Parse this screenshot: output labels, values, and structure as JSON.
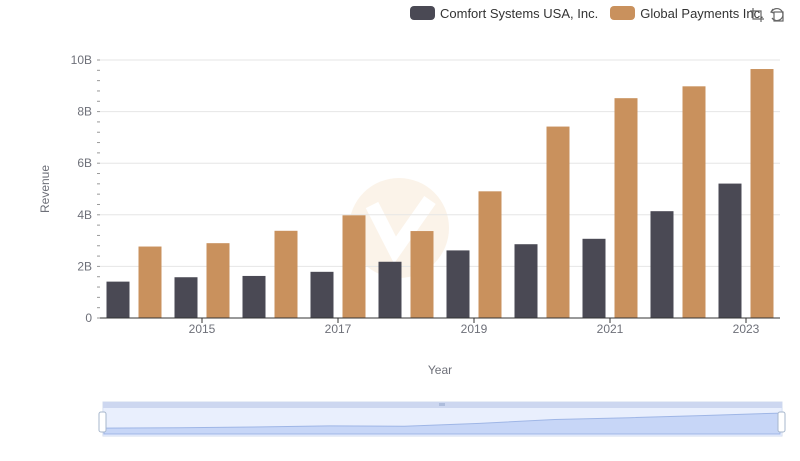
{
  "legend": {
    "items": [
      {
        "label": "Comfort Systems USA, Inc.",
        "color": "#4a4954"
      },
      {
        "label": "Global Payments Inc.",
        "color": "#c9915d"
      }
    ]
  },
  "toolbar": {
    "icons": [
      "zoom-icon",
      "restore-icon"
    ]
  },
  "chart_data": {
    "type": "bar",
    "x": [
      2014,
      2015,
      2016,
      2017,
      2018,
      2019,
      2020,
      2021,
      2022,
      2023
    ],
    "xlabel": "Year",
    "ylabel": "Revenue",
    "ylim": [
      0,
      10000000000
    ],
    "yticks": [
      {
        "value": 0,
        "label": "0"
      },
      {
        "value": 2000000000,
        "label": "2B"
      },
      {
        "value": 4000000000,
        "label": "4B"
      },
      {
        "value": 6000000000,
        "label": "6B"
      },
      {
        "value": 8000000000,
        "label": "8B"
      },
      {
        "value": 10000000000,
        "label": "10B"
      }
    ],
    "xticks": [
      2015,
      2017,
      2019,
      2021,
      2023
    ],
    "grid": true,
    "legend_position": "top-right",
    "series": [
      {
        "name": "Comfort Systems USA, Inc.",
        "color": "#4a4954",
        "values": [
          1410000000,
          1580000000,
          1630000000,
          1790000000,
          2180000000,
          2620000000,
          2860000000,
          3070000000,
          4140000000,
          5210000000
        ]
      },
      {
        "name": "Global Payments Inc.",
        "color": "#c9915d",
        "values": [
          2770000000,
          2900000000,
          3380000000,
          3980000000,
          3370000000,
          4910000000,
          7420000000,
          8520000000,
          8980000000,
          9650000000
        ]
      }
    ]
  }
}
